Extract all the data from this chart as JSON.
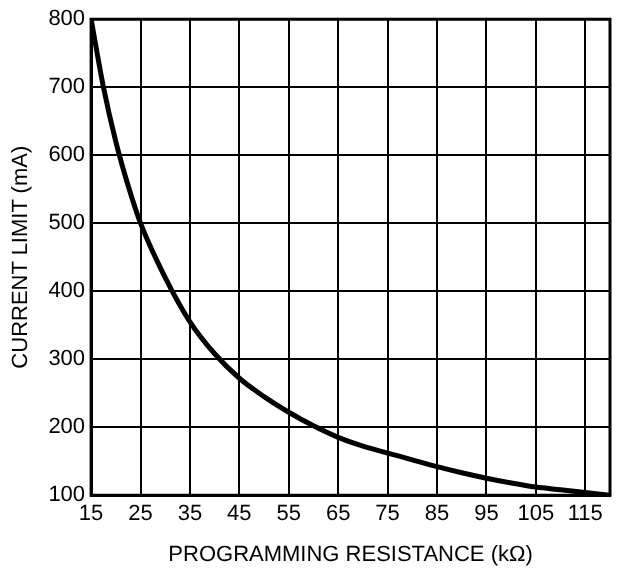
{
  "chart_data": {
    "type": "line",
    "xlabel": "PROGRAMMING RESISTANCE (kΩ)",
    "ylabel": "CURRENT LIMIT (mA)",
    "x": [
      15,
      17.5,
      20,
      22.5,
      25,
      30,
      35,
      40,
      45,
      50,
      55,
      60,
      65,
      70,
      75,
      80,
      85,
      90,
      95,
      100,
      105,
      110,
      115,
      120
    ],
    "series": [
      {
        "color": "#000000",
        "values": [
          800,
          700,
          620,
          555,
          500,
          420,
          355,
          308,
          272,
          245,
          222,
          202,
          185,
          172,
          162,
          152,
          142,
          133,
          125,
          118,
          112,
          108,
          104,
          100
        ]
      }
    ],
    "xlim": [
      15,
      120
    ],
    "xticks": [
      15,
      25,
      35,
      45,
      55,
      65,
      75,
      85,
      95,
      105,
      115
    ],
    "ylim": [
      100,
      800
    ],
    "yticks": [
      100,
      200,
      300,
      400,
      500,
      600,
      700,
      800
    ],
    "grid": true,
    "legend": false,
    "marker": "none",
    "line_style": "solid"
  }
}
